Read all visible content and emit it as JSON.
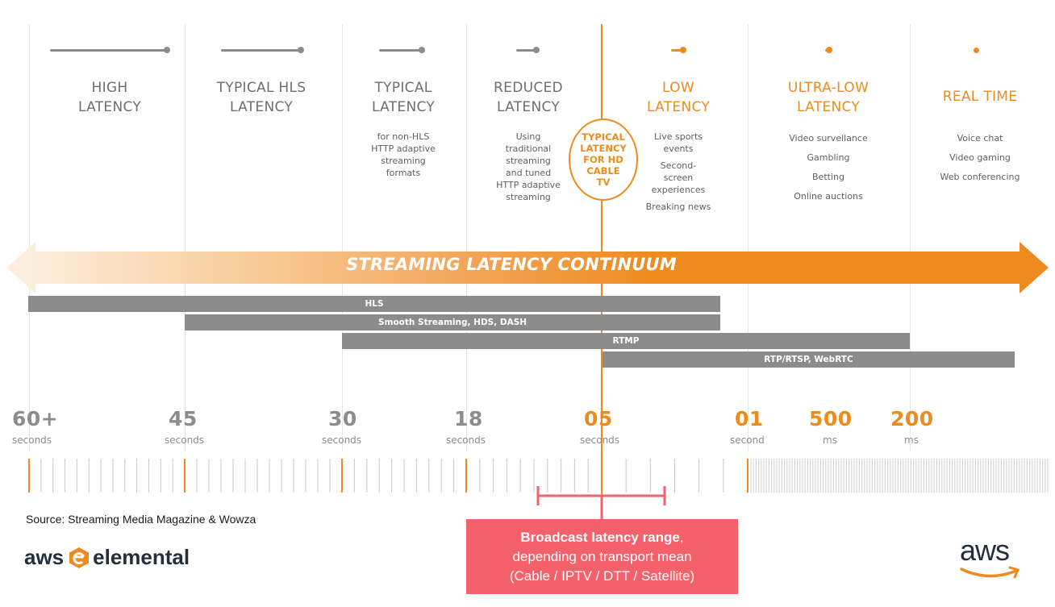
{
  "categories": [
    {
      "id": "high",
      "title": "HIGH\nLATENCY",
      "desc": [],
      "accent": false
    },
    {
      "id": "typical-hls",
      "title": "TYPICAL HLS\nLATENCY",
      "desc": [],
      "accent": false
    },
    {
      "id": "typical",
      "title": "TYPICAL\nLATENCY",
      "desc": [
        "for non-HLS\nHTTP adaptive\nstreaming\nformats"
      ],
      "accent": false
    },
    {
      "id": "reduced",
      "title": "REDUCED\nLATENCY",
      "desc": [
        "Using\ntraditional\nstreaming\nand tuned\nHTTP adaptive\nstreaming"
      ],
      "accent": false
    },
    {
      "id": "low",
      "title": "LOW\nLATENCY",
      "desc": [
        "Live sports\nevents",
        "Second-\nscreen\nexperiences",
        "Breaking news"
      ],
      "accent": true
    },
    {
      "id": "ultra-low",
      "title": "ULTRA-LOW\nLATENCY",
      "desc": [
        "Video survellance",
        "Gambling",
        "Betting",
        "Online auctions"
      ],
      "accent": true
    },
    {
      "id": "real-time",
      "title": "REAL TIME",
      "desc": [
        "Voice chat",
        "Video gaming",
        "Web conferencing"
      ],
      "accent": true
    }
  ],
  "cable_tv": "TYPICAL\nLATENCY\nFOR HD\nCABLE\nTV",
  "continuum_label": "STREAMING LATENCY CONTINUUM",
  "protocols": {
    "hls": "HLS",
    "smooth": "Smooth Streaming, HDS, DASH",
    "rtmp": "RTMP",
    "rtp": "RTP/RTSP, WebRTC"
  },
  "ticks": [
    {
      "value": "60+",
      "unit": "seconds",
      "accent": false
    },
    {
      "value": "45",
      "unit": "seconds",
      "accent": false
    },
    {
      "value": "30",
      "unit": "seconds",
      "accent": false
    },
    {
      "value": "18",
      "unit": "seconds",
      "accent": false
    },
    {
      "value": "05",
      "unit": "seconds",
      "accent": true
    },
    {
      "value": "01",
      "unit": "second",
      "accent": true
    },
    {
      "value": "500",
      "unit": "ms",
      "accent": true
    },
    {
      "value": "200",
      "unit": "ms",
      "accent": true
    }
  ],
  "source": "Source: Streaming Media Magazine & Wowza",
  "brand": {
    "left": "aws",
    "right": "elemental"
  },
  "aws_logo": "aws",
  "broadcast": {
    "bold": "Broadcast latency range",
    "tail": ",",
    "line2": "depending on transport mean",
    "line3": "(Cable / IPTV / DTT / Satellite)"
  },
  "colors": {
    "orange": "#ee8b1f",
    "gray": "#8c8c8c",
    "text_gray": "#6e6e6e",
    "broadcast": "#f5616a"
  }
}
